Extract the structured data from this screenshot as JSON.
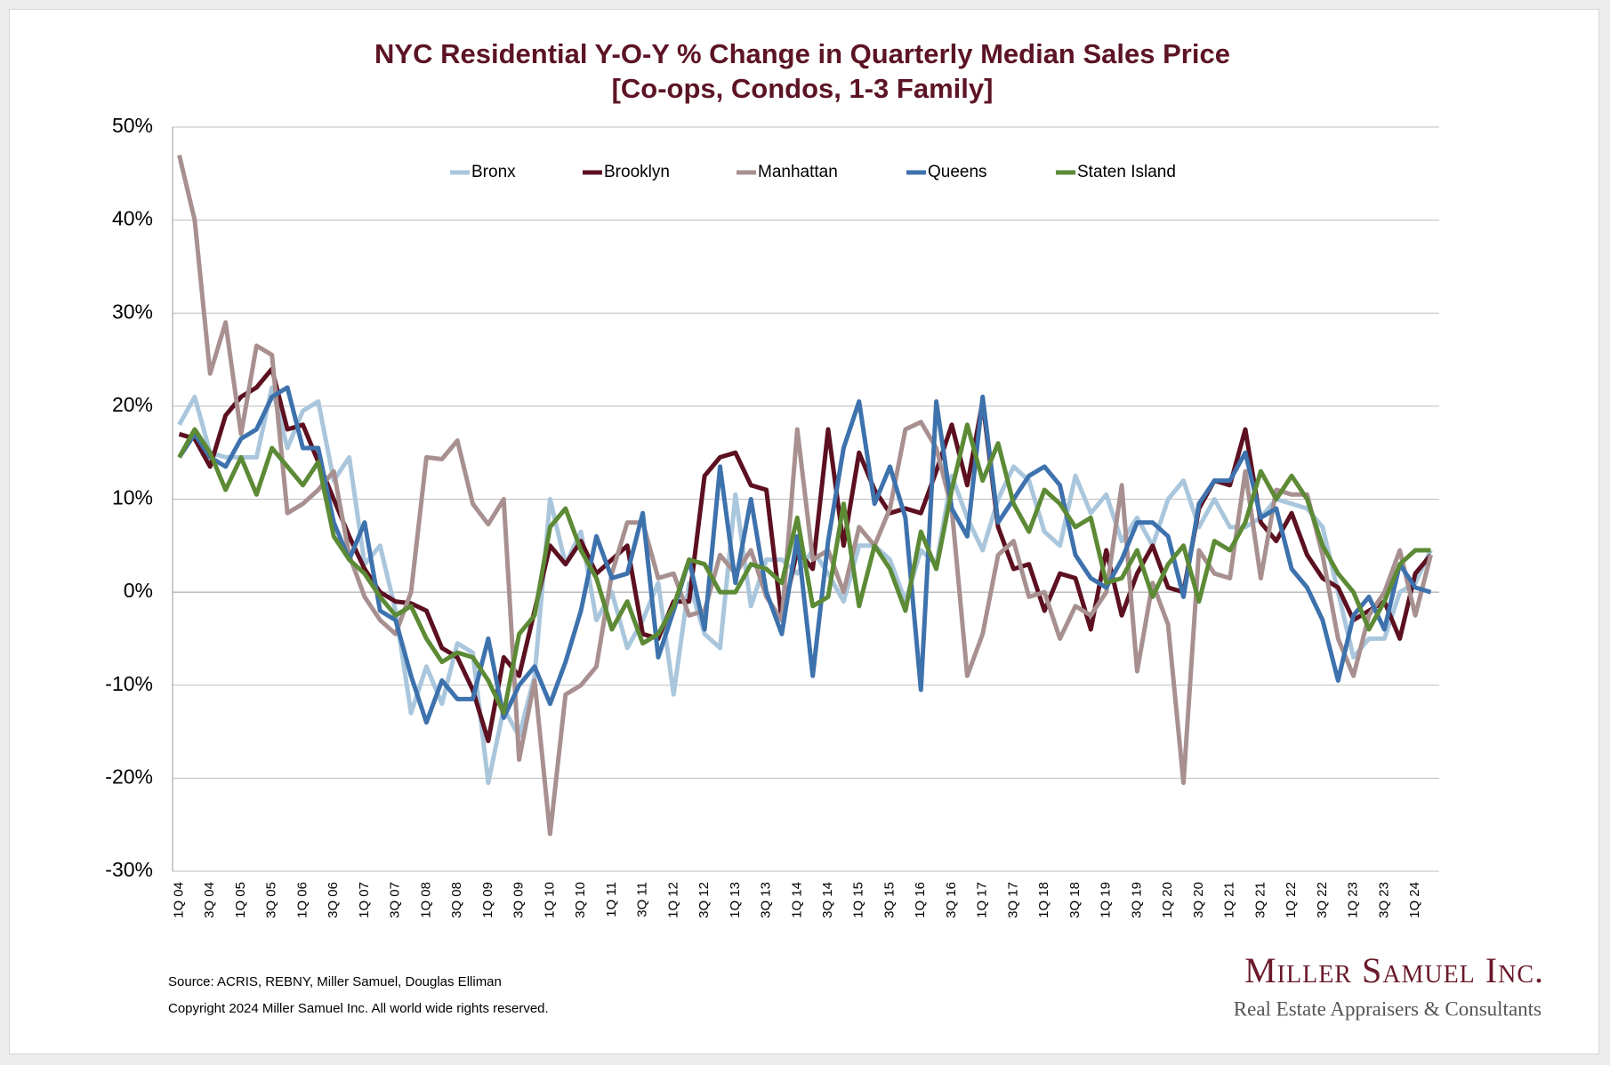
{
  "chart_data": {
    "type": "line",
    "title": "NYC Residential Y-O-Y % Change in Quarterly Median Sales Price",
    "subtitle": "[Co-ops, Condos, 1-3 Family]",
    "categories": [
      "1Q 04",
      null,
      "3Q 04",
      null,
      "1Q 05",
      null,
      "3Q 05",
      null,
      "1Q 06",
      null,
      "3Q 06",
      null,
      "1Q 07",
      null,
      "3Q 07",
      null,
      "1Q 08",
      null,
      "3Q 08",
      null,
      "1Q 09",
      null,
      "3Q 09",
      null,
      "1Q 10",
      null,
      "3Q 10",
      null,
      "1Q 11",
      null,
      "3Q 11",
      null,
      "1Q 12",
      null,
      "3Q 12",
      null,
      "1Q 13",
      null,
      "3Q 13",
      null,
      "1Q 14",
      null,
      "3Q 14",
      null,
      "1Q 15",
      null,
      "3Q 15",
      null,
      "1Q 16",
      null,
      "3Q 16",
      null,
      "1Q 17",
      null,
      "3Q 17",
      null,
      "1Q 18",
      null,
      "3Q 18",
      null,
      "1Q 19",
      null,
      "3Q 19",
      null,
      "1Q 20",
      null,
      "3Q 20",
      null,
      "1Q 21",
      null,
      "3Q 21",
      null,
      "1Q 22",
      null,
      "3Q 22",
      null,
      "1Q 23",
      null,
      "3Q 23",
      null,
      "1Q 24",
      null
    ],
    "series": [
      {
        "name": "Bronx",
        "color": "#a9c6dc",
        "values": [
          18,
          21,
          15,
          14.5,
          14.5,
          14.5,
          22,
          15.5,
          19.5,
          20.5,
          12,
          14.5,
          3,
          5,
          -2,
          -13,
          -8,
          -12,
          -5.5,
          -6.5,
          -20.5,
          -12.5,
          -15.5,
          -9,
          10,
          3,
          6.5,
          -3,
          0,
          -6,
          -3,
          1,
          -11,
          1,
          -4.5,
          -6,
          10.5,
          -1.5,
          3.5,
          3.5,
          2,
          4.5,
          2,
          -1,
          5,
          5,
          3.5,
          -1,
          4.5,
          3,
          12.5,
          8,
          4.5,
          10,
          13.5,
          12,
          6.5,
          5,
          12.5,
          8.5,
          10.5,
          5.5,
          8,
          5,
          10,
          12,
          7,
          10,
          7,
          7,
          8,
          10,
          9.5,
          9,
          7,
          0,
          -7,
          -5,
          -5,
          0,
          1,
          4.5
        ]
      },
      {
        "name": "Brooklyn",
        "color": "#5c1020",
        "values": [
          17,
          16.5,
          13.5,
          19,
          21,
          22,
          24,
          17.5,
          18,
          14,
          10,
          6,
          2.5,
          0,
          -1,
          -1.2,
          -2,
          -6,
          -7,
          -10.5,
          -16,
          -7,
          -9,
          -2,
          5,
          3,
          5.5,
          2,
          3.5,
          5,
          -4.5,
          -5,
          -1,
          -1,
          12.5,
          14.5,
          15,
          11.5,
          11,
          -3,
          4.5,
          2.5,
          17.5,
          5,
          15,
          11,
          8.5,
          9,
          8.5,
          13,
          18,
          11.5,
          20.5,
          7,
          2.5,
          3,
          -2,
          2,
          1.5,
          -4,
          4.5,
          -2.5,
          2,
          5,
          0.5,
          0,
          9,
          12,
          11.5,
          17.5,
          7.5,
          5.5,
          8.5,
          4,
          1.5,
          0.5,
          -3,
          -2,
          -1,
          -5,
          2,
          4
        ]
      },
      {
        "name": "Manhattan",
        "color": "#a89090",
        "values": [
          47,
          40,
          23.5,
          29,
          17,
          26.5,
          25.5,
          8.5,
          9.5,
          11,
          13,
          4,
          -0.5,
          -3,
          -4.5,
          0,
          14.5,
          14.3,
          16.3,
          9.5,
          7.3,
          10,
          -18,
          -9.5,
          -26,
          -11,
          -10,
          -8,
          2,
          7.5,
          7.5,
          1.5,
          2,
          -2.5,
          -2,
          4,
          2,
          4.5,
          -0.5,
          -3,
          17.5,
          3.5,
          4.5,
          0,
          7,
          5,
          9,
          17.5,
          18.3,
          15.5,
          9,
          -9,
          -4.5,
          4,
          5.5,
          -0.5,
          0,
          -5,
          -1.5,
          -2.5,
          0,
          11.5,
          -8.5,
          1,
          -3.5,
          -20.5,
          4.5,
          2,
          1.5,
          13,
          1.5,
          11,
          10.5,
          10.5,
          4,
          -5,
          -9,
          -2.5,
          0,
          4.5,
          -2.5,
          4
        ]
      },
      {
        "name": "Queens",
        "color": "#3d72ad",
        "values": [
          14.5,
          17,
          14.5,
          13.5,
          16.5,
          17.5,
          21,
          22,
          15.5,
          15.5,
          7.5,
          3.5,
          7.5,
          -2,
          -3,
          -9,
          -14,
          -9.5,
          -11.5,
          -11.5,
          -5,
          -13.5,
          -10,
          -8,
          -12,
          -7.5,
          -2,
          6,
          1.5,
          2,
          8.5,
          -7,
          -2,
          3.5,
          -4,
          13.5,
          1,
          10,
          0,
          -4.5,
          6,
          -9,
          5.5,
          15.5,
          20.5,
          9.5,
          13.5,
          8,
          -10.5,
          20.5,
          9,
          6,
          21,
          7.5,
          10,
          12.5,
          13.5,
          11.5,
          4,
          1.5,
          0.5,
          3.5,
          7.5,
          7.5,
          6,
          -0.5,
          9.5,
          12,
          12,
          15,
          8,
          9,
          2.5,
          0.5,
          -3,
          -9.5,
          -2.5,
          -0.5,
          -4,
          3,
          0.5,
          0
        ]
      },
      {
        "name": "Staten Island",
        "color": "#5c8a35",
        "values": [
          14.5,
          17.5,
          15,
          11,
          14.5,
          10.5,
          15.5,
          13.5,
          11.5,
          14,
          6,
          3.5,
          2,
          -0.5,
          -2.5,
          -1.5,
          -5,
          -7.5,
          -6.5,
          -7,
          -9.5,
          -13,
          -4.5,
          -2.5,
          7,
          9,
          4.5,
          1.5,
          -4,
          -1,
          -5.5,
          -4.5,
          -1.5,
          3.5,
          3,
          0,
          0,
          3,
          2.5,
          1,
          8,
          -1.5,
          -0.5,
          9.5,
          -1.5,
          5,
          2.5,
          -2,
          6.5,
          2.5,
          11,
          18,
          12,
          16,
          9.5,
          6.5,
          11,
          9.5,
          7,
          8,
          1,
          1.5,
          4.5,
          -0.5,
          3,
          5,
          -1,
          5.5,
          4.5,
          7.5,
          13,
          10,
          12.5,
          10,
          5,
          2,
          0,
          -4,
          -1,
          3,
          4.5,
          4.5
        ]
      }
    ],
    "ylim": [
      -30,
      50
    ],
    "yticks": [
      {
        "value": -30,
        "label": "-30%"
      },
      {
        "value": -20,
        "label": "-20%"
      },
      {
        "value": -10,
        "label": "-10%"
      },
      {
        "value": 0,
        "label": "0%"
      },
      {
        "value": 10,
        "label": "10%"
      },
      {
        "value": 20,
        "label": "20%"
      },
      {
        "value": 30,
        "label": "30%"
      },
      {
        "value": 40,
        "label": "40%"
      },
      {
        "value": 50,
        "label": "50%"
      }
    ],
    "grid": true,
    "legend": "top",
    "source": "Source: ACRIS, REBNY, Miller Samuel, Douglas Elliman",
    "copyright": "Copyright 2024 Miller Samuel Inc.  All world wide rights reserved."
  },
  "branding": {
    "name": "Miller Samuel Inc.",
    "tagline": "Real Estate Appraisers & Consultants"
  }
}
